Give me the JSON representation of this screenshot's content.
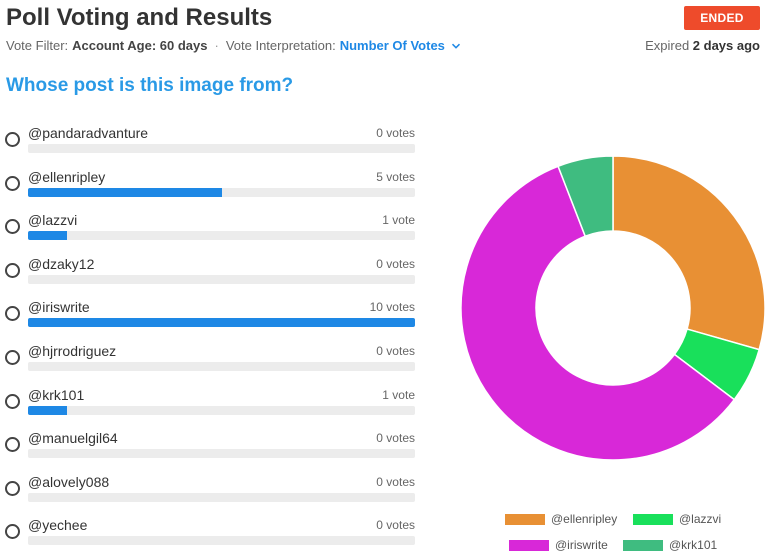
{
  "header": {
    "title": "Poll Voting and Results",
    "status_badge": "ENDED",
    "vote_filter_label": "Vote Filter:",
    "vote_filter_value": "Account Age: 60 days",
    "separator": "·",
    "interpretation_label": "Vote Interpretation:",
    "interpretation_value": "Number Of Votes",
    "expired_prefix": "Expired",
    "expired_value": "2 days ago"
  },
  "question": "Whose post is this image from?",
  "options": [
    {
      "label": "@pandaradvanture",
      "votes": 0,
      "votes_text": "0 votes"
    },
    {
      "label": "@ellenripley",
      "votes": 5,
      "votes_text": "5 votes"
    },
    {
      "label": "@lazzvi",
      "votes": 1,
      "votes_text": "1 vote"
    },
    {
      "label": "@dzaky12",
      "votes": 0,
      "votes_text": "0 votes"
    },
    {
      "label": "@iriswrite",
      "votes": 10,
      "votes_text": "10 votes"
    },
    {
      "label": "@hjrrodriguez",
      "votes": 0,
      "votes_text": "0 votes"
    },
    {
      "label": "@krk101",
      "votes": 1,
      "votes_text": "1 vote"
    },
    {
      "label": "@manuelgil64",
      "votes": 0,
      "votes_text": "0 votes"
    },
    {
      "label": "@alovely088",
      "votes": 0,
      "votes_text": "0 votes"
    },
    {
      "label": "@yechee",
      "votes": 0,
      "votes_text": "0 votes"
    }
  ],
  "colors": {
    "accent": "#1e88e5",
    "question": "#2a9ae6",
    "badge": "#ee4b2b"
  },
  "chart_data": {
    "type": "pie",
    "donut": true,
    "categories": [
      "@ellenripley",
      "@lazzvi",
      "@iriswrite",
      "@krk101"
    ],
    "values": [
      5,
      1,
      10,
      1
    ],
    "colors": [
      "#e89034",
      "#19e05b",
      "#d828d8",
      "#3fbc80"
    ],
    "legend": "bottom"
  }
}
